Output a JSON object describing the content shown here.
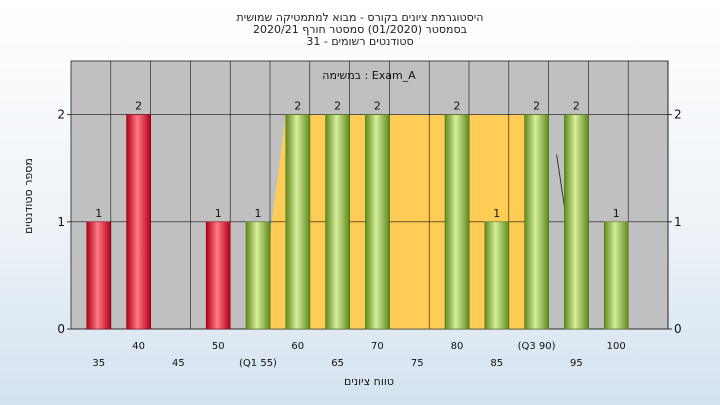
{
  "title_lines": [
    "היסטוגרמת ציונים בקורס - מבוא למתמטיקה שמושית",
    "בסמסטר  (01/2020)  סמסטר חורף  2020/21",
    "31 - סטודנטים רשומים"
  ],
  "chart_data": {
    "type": "bar",
    "title": "היסטוגרמת ציונים בקורס - מבוא למתמטיקה שמושית",
    "annotation": "במשימה : Exam_A",
    "xlabel": "טווח ציונים",
    "ylabel": "מספר סטודנטים",
    "ylim": [
      0,
      2.5
    ],
    "yticks": [
      0,
      1,
      2
    ],
    "grid": true,
    "x_ticks": [
      {
        "label": "35",
        "row": 2
      },
      {
        "label": "40",
        "row": 1
      },
      {
        "label": "45",
        "row": 2
      },
      {
        "label": "50",
        "row": 1
      },
      {
        "label": "(Q1 55)",
        "row": 2
      },
      {
        "label": "60",
        "row": 1
      },
      {
        "label": "65",
        "row": 2
      },
      {
        "label": "70",
        "row": 1
      },
      {
        "label": "75",
        "row": 2
      },
      {
        "label": "80",
        "row": 1
      },
      {
        "label": "85",
        "row": 2
      },
      {
        "label": "(Q3 90)",
        "row": 1
      },
      {
        "label": "95",
        "row": 2
      },
      {
        "label": "100",
        "row": 1
      }
    ],
    "bars": [
      {
        "grade": 35,
        "value": 1,
        "color": "red"
      },
      {
        "grade": 40,
        "value": 2,
        "color": "red"
      },
      {
        "grade": 50,
        "value": 1,
        "color": "red"
      },
      {
        "grade": 55,
        "value": 1,
        "color": "green"
      },
      {
        "grade": 60,
        "value": 2,
        "color": "green"
      },
      {
        "grade": 65,
        "value": 2,
        "color": "green"
      },
      {
        "grade": 70,
        "value": 2,
        "color": "green"
      },
      {
        "grade": 80,
        "value": 2,
        "color": "green"
      },
      {
        "grade": 85,
        "value": 1,
        "color": "green"
      },
      {
        "grade": 90,
        "value": 2,
        "color": "green"
      },
      {
        "grade": 95,
        "value": 2,
        "color": "green"
      },
      {
        "grade": 100,
        "value": 1,
        "color": "green"
      }
    ],
    "iqr_band": {
      "from": 55,
      "to": 90,
      "value": 2
    },
    "colors": {
      "plot_bg": "#c0c0c0",
      "band": "#ffcc55",
      "red_bar": "#e8102a",
      "green_bar": "#8db83a"
    }
  }
}
